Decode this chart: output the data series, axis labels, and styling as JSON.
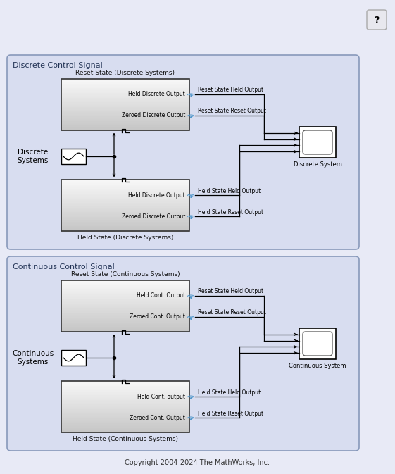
{
  "bg_color": "#e8eaf6",
  "panel_bg": "#d8dcf0",
  "fig_bg": "#e8eaf6",
  "copyright": "Copyright 2004-2024 The MathWorks, Inc.",
  "question_btn": "?",
  "panel1_title": "Discrete Control Signal",
  "panel2_title": "Continuous Control Signal",
  "block1_top_label": "Reset State (Discrete Systems)",
  "block1_bot_label": "Held State (Discrete Systems)",
  "block2_top_label": "Reset State (Continuous Systems)",
  "block2_bot_label": "Held State (Continuous Systems)",
  "disc_sys_label": "Discrete\nSystems",
  "cont_sys_label": "Continuous\nSystems",
  "scope1_label": "Discrete System",
  "scope2_label": "Continuous System",
  "d_top_out1": "Held Discrete Output",
  "d_top_out2": "Zeroed Discrete Output",
  "d_bot_out1": "Held Discrete Output",
  "d_bot_out2": "Zeroed Discrete Output",
  "c_top_out1": "Held Cont. Output",
  "c_top_out2": "Zeroed Cont. Output",
  "c_bot_out1": "Held Cont. output",
  "c_bot_out2": "Zeroed Cont. Output",
  "wire1": "Reset State Held Output",
  "wire2": "Reset State Reset Output",
  "wire3": "Held State Held Output",
  "wire4": "Held State Reset Output",
  "wire5": "Reset State Held Output",
  "wire6": "Reset State Reset Output",
  "wire7": "Held State Held Output",
  "wire8": "Held State Reset Output"
}
